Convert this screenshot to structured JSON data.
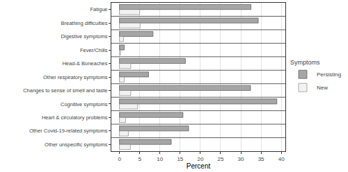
{
  "chart_data": {
    "type": "bar",
    "orientation": "horizontal",
    "categories": [
      "Fatigue",
      "Breathing difficulties",
      "Digestive symptoms",
      "Fever/Chills",
      "Head-& Boneaches",
      "Other respiratory symptoms",
      "Changes to sense of smell and taste",
      "Cognitive symptoms",
      "Heart & circulatory problems",
      "Other Covid-19-related symptoms",
      "Other unspecific symptoms"
    ],
    "series": [
      {
        "name": "Persisting",
        "color": "#a6a6a6",
        "values": [
          32.5,
          34.3,
          8.3,
          1.2,
          16.3,
          7.2,
          32.4,
          38.9,
          15.7,
          17.1,
          12.8
        ]
      },
      {
        "name": "New",
        "color": "#f2f2f2",
        "values": [
          5.0,
          5.1,
          1.0,
          0.3,
          2.8,
          1.2,
          2.8,
          4.5,
          1.5,
          2.2,
          2.7
        ]
      }
    ],
    "x_label": "Percent",
    "legend_title": "Symptoms",
    "legend": "right",
    "xlim": [
      -2,
      41
    ],
    "xticks": [
      0,
      5,
      10,
      15,
      20,
      25,
      30,
      35,
      40
    ],
    "grid": true
  }
}
